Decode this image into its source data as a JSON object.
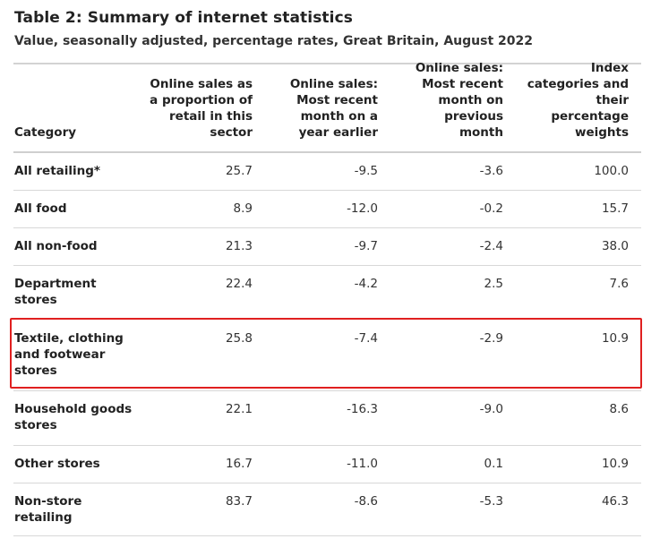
{
  "title": "Table 2: Summary of internet statistics",
  "subtitle": "Value, seasonally adjusted, percentage rates, Great Britain, August 2022",
  "headers": {
    "category": "Category",
    "col1": "Online sales as a proportion of retail in this sector",
    "col2": "Online sales: Most recent month on a year earlier",
    "col3": "Online sales: Most recent month on previous month",
    "col4": "Index categories and their percentage weights"
  },
  "rows": [
    {
      "category": "All retailing*",
      "col1": "25.7",
      "col2": "-9.5",
      "col3": "-3.6",
      "col4": "100.0"
    },
    {
      "category": "All food",
      "col1": "8.9",
      "col2": "-12.0",
      "col3": "-0.2",
      "col4": "15.7"
    },
    {
      "category": "All non-food",
      "col1": "21.3",
      "col2": "-9.7",
      "col3": "-2.4",
      "col4": "38.0"
    },
    {
      "category": "Department stores",
      "col1": "22.4",
      "col2": "-4.2",
      "col3": "2.5",
      "col4": "7.6"
    },
    {
      "category": "Textile, clothing and footwear stores",
      "col1": "25.8",
      "col2": "-7.4",
      "col3": "-2.9",
      "col4": "10.9"
    },
    {
      "category": "Household goods stores",
      "col1": "22.1",
      "col2": "-16.3",
      "col3": "-9.0",
      "col4": "8.6"
    },
    {
      "category": "Other stores",
      "col1": "16.7",
      "col2": "-11.0",
      "col3": "0.1",
      "col4": "10.9"
    },
    {
      "category": "Non-store retailing",
      "col1": "83.7",
      "col2": "-8.6",
      "col3": "-5.3",
      "col4": "46.3"
    }
  ],
  "highlight": {
    "row_category": "Textile, clothing and footwear stores",
    "color": "#e02020"
  }
}
